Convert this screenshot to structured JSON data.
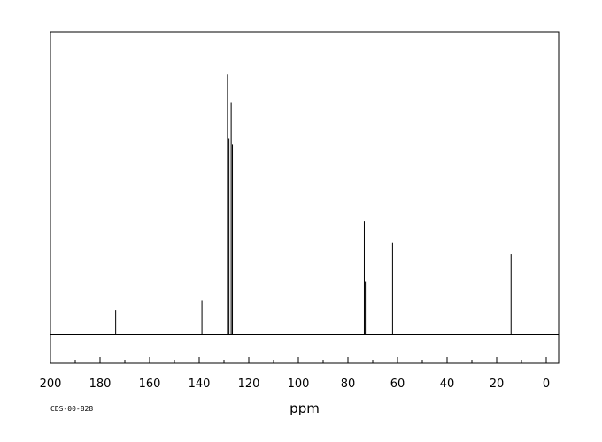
{
  "chart_data": {
    "type": "line",
    "xlabel": "ppm",
    "xlim": [
      200,
      -5
    ],
    "x_ticks": [
      200,
      180,
      160,
      140,
      120,
      100,
      80,
      60,
      40,
      20,
      0
    ],
    "x_tick_labels": [
      "200",
      "180",
      "160",
      "140",
      "120",
      "100",
      "80",
      "60",
      "40",
      "20",
      "0"
    ],
    "minor_tick_step": 10,
    "ylim": [
      0,
      1
    ],
    "grid": false,
    "baseline": 0,
    "peaks": [
      {
        "x": 173.7,
        "y": 0.08
      },
      {
        "x": 138.9,
        "y": 0.114
      },
      {
        "x": 128.6,
        "y": 0.859
      },
      {
        "x": 128.0,
        "y": 0.648
      },
      {
        "x": 127.1,
        "y": 0.768
      },
      {
        "x": 126.6,
        "y": 0.628
      },
      {
        "x": 73.4,
        "y": 0.375
      },
      {
        "x": 73.0,
        "y": 0.175
      },
      {
        "x": 62.0,
        "y": 0.303
      },
      {
        "x": 14.2,
        "y": 0.267
      }
    ]
  },
  "footer": {
    "source_id": "CDS-00-828"
  }
}
